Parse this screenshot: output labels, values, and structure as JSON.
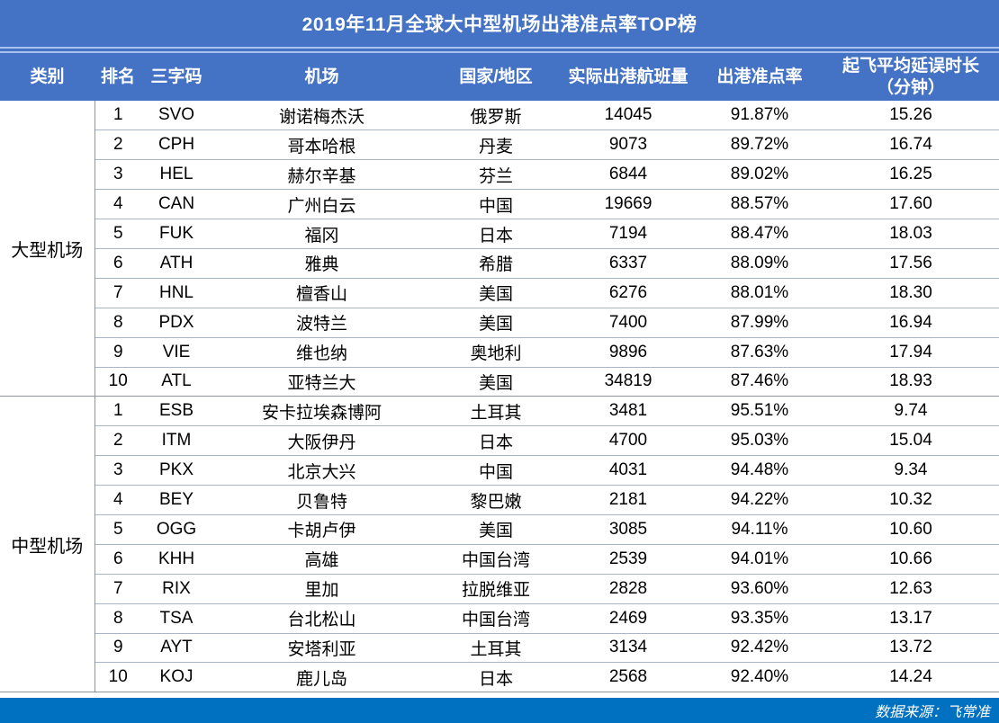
{
  "page": {
    "colors": {
      "header_blue": "#4472C4",
      "footer_blue": "#0070C0",
      "row_line": "#a9b6c6",
      "major_line": "#8f959b"
    },
    "footer": {
      "source_label": "数据来源：飞常准"
    }
  },
  "header": {
    "category": "类别",
    "rank": "排名",
    "code": "三字码",
    "airport": "机场",
    "country": "国家/地区",
    "flights": "实际出港航班量",
    "ontime": "出港准点率",
    "delay_line1": "起飞平均延误时长",
    "delay_line2": "（分钟）"
  },
  "chart_data": {
    "type": "table",
    "title": "2019年11月全球大中型机场出港准点率TOP榜",
    "columns": [
      "类别",
      "排名",
      "三字码",
      "机场",
      "国家/地区",
      "实际出港航班量",
      "出港准点率",
      "起飞平均延误时长（分钟）"
    ],
    "source": "数据来源：飞常准",
    "sections": [
      {
        "category": "大型机场",
        "rows": [
          {
            "rank": "1",
            "code": "SVO",
            "airport": "谢诺梅杰沃",
            "country": "俄罗斯",
            "flights": "14045",
            "ontime": "91.87%",
            "delay": "15.26"
          },
          {
            "rank": "2",
            "code": "CPH",
            "airport": "哥本哈根",
            "country": "丹麦",
            "flights": "9073",
            "ontime": "89.72%",
            "delay": "16.74"
          },
          {
            "rank": "3",
            "code": "HEL",
            "airport": "赫尔辛基",
            "country": "芬兰",
            "flights": "6844",
            "ontime": "89.02%",
            "delay": "16.25"
          },
          {
            "rank": "4",
            "code": "CAN",
            "airport": "广州白云",
            "country": "中国",
            "flights": "19669",
            "ontime": "88.57%",
            "delay": "17.60"
          },
          {
            "rank": "5",
            "code": "FUK",
            "airport": "福冈",
            "country": "日本",
            "flights": "7194",
            "ontime": "88.47%",
            "delay": "18.03"
          },
          {
            "rank": "6",
            "code": "ATH",
            "airport": "雅典",
            "country": "希腊",
            "flights": "6337",
            "ontime": "88.09%",
            "delay": "17.56"
          },
          {
            "rank": "7",
            "code": "HNL",
            "airport": "檀香山",
            "country": "美国",
            "flights": "6276",
            "ontime": "88.01%",
            "delay": "18.30"
          },
          {
            "rank": "8",
            "code": "PDX",
            "airport": "波特兰",
            "country": "美国",
            "flights": "7400",
            "ontime": "87.99%",
            "delay": "16.94"
          },
          {
            "rank": "9",
            "code": "VIE",
            "airport": "维也纳",
            "country": "奥地利",
            "flights": "9896",
            "ontime": "87.63%",
            "delay": "17.94"
          },
          {
            "rank": "10",
            "code": "ATL",
            "airport": "亚特兰大",
            "country": "美国",
            "flights": "34819",
            "ontime": "87.46%",
            "delay": "18.93"
          }
        ]
      },
      {
        "category": "中型机场",
        "rows": [
          {
            "rank": "1",
            "code": "ESB",
            "airport": "安卡拉埃森博阿",
            "country": "土耳其",
            "flights": "3481",
            "ontime": "95.51%",
            "delay": "9.74"
          },
          {
            "rank": "2",
            "code": "ITM",
            "airport": "大阪伊丹",
            "country": "日本",
            "flights": "4700",
            "ontime": "95.03%",
            "delay": "15.04"
          },
          {
            "rank": "3",
            "code": "PKX",
            "airport": "北京大兴",
            "country": "中国",
            "flights": "4031",
            "ontime": "94.48%",
            "delay": "9.34"
          },
          {
            "rank": "4",
            "code": "BEY",
            "airport": "贝鲁特",
            "country": "黎巴嫩",
            "flights": "2181",
            "ontime": "94.22%",
            "delay": "10.32"
          },
          {
            "rank": "5",
            "code": "OGG",
            "airport": "卡胡卢伊",
            "country": "美国",
            "flights": "3085",
            "ontime": "94.11%",
            "delay": "10.60"
          },
          {
            "rank": "6",
            "code": "KHH",
            "airport": "高雄",
            "country": "中国台湾",
            "flights": "2539",
            "ontime": "94.01%",
            "delay": "10.66"
          },
          {
            "rank": "7",
            "code": "RIX",
            "airport": "里加",
            "country": "拉脱维亚",
            "flights": "2828",
            "ontime": "93.60%",
            "delay": "12.63"
          },
          {
            "rank": "8",
            "code": "TSA",
            "airport": "台北松山",
            "country": "中国台湾",
            "flights": "2469",
            "ontime": "93.35%",
            "delay": "13.17"
          },
          {
            "rank": "9",
            "code": "AYT",
            "airport": "安塔利亚",
            "country": "土耳其",
            "flights": "3134",
            "ontime": "92.42%",
            "delay": "13.72"
          },
          {
            "rank": "10",
            "code": "KOJ",
            "airport": "鹿儿岛",
            "country": "日本",
            "flights": "2568",
            "ontime": "92.40%",
            "delay": "14.24"
          }
        ]
      }
    ]
  }
}
